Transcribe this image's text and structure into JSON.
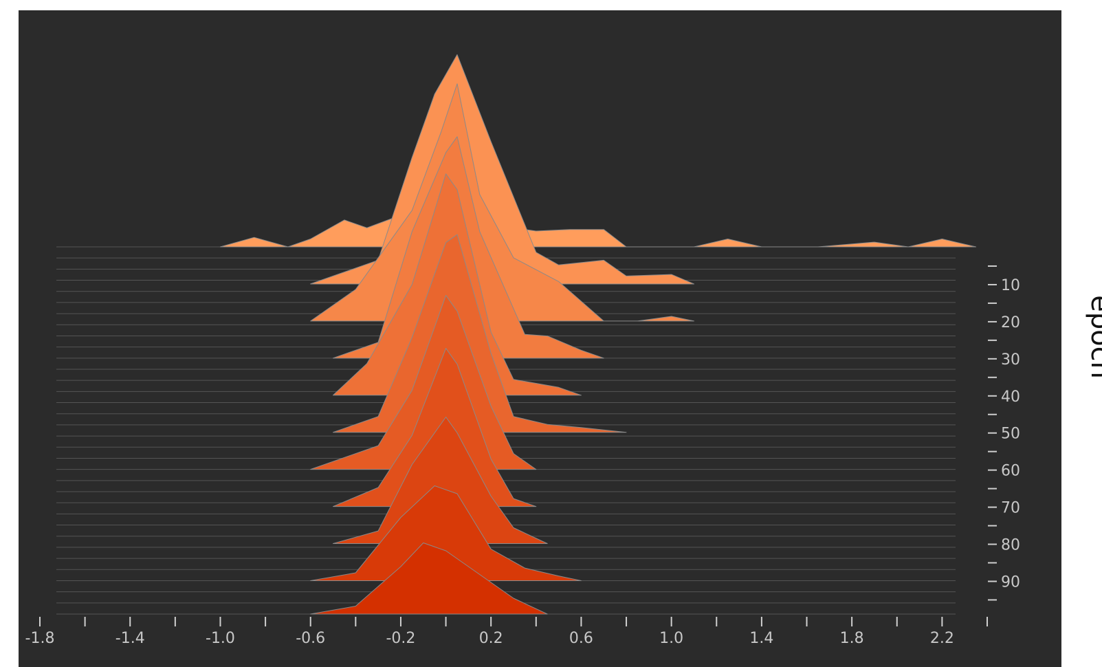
{
  "chart_data": {
    "type": "area",
    "title": "",
    "xlabel": "",
    "ylabel": "epoch",
    "xlim": [
      -1.8,
      2.4
    ],
    "epochs": [
      0,
      99
    ],
    "x_ticks": [
      -1.8,
      -1.4,
      -1.0,
      -0.6,
      -0.2,
      0.2,
      0.6,
      1.0,
      1.4,
      1.8,
      2.2
    ],
    "x_tick_labels": [
      "-1.8",
      "-1.4",
      "-1.0",
      "-0.6",
      "-0.2",
      "0.2",
      "0.6",
      "1.0",
      "1.4",
      "1.8",
      "2.2"
    ],
    "y_ticks": [
      10,
      20,
      30,
      40,
      50,
      60,
      70,
      80,
      90
    ],
    "y_tick_labels": [
      "10",
      "20",
      "30",
      "40",
      "50",
      "60",
      "70",
      "80",
      "90"
    ],
    "background_color": "#2b2b2b",
    "color_first_epoch": "#ff9d5c",
    "color_last_epoch": "#d43000",
    "baseline_color": "#555555",
    "series": [
      {
        "epoch": 0,
        "x": [
          -1.0,
          -0.85,
          -0.7,
          -0.6,
          -0.45,
          -0.35,
          -0.2,
          -0.1,
          0.02,
          0.15,
          0.3,
          0.4,
          0.55,
          0.7,
          0.8,
          1.1,
          1.25,
          1.4,
          1.65,
          1.9,
          2.05,
          2.2,
          2.35
        ],
        "y": [
          0,
          0.06,
          0,
          0.05,
          0.17,
          0.12,
          0.2,
          0.38,
          0.42,
          0.35,
          0.12,
          0.1,
          0.11,
          0.11,
          0,
          0,
          0.05,
          0,
          0,
          0.03,
          0,
          0.05,
          0
        ]
      },
      {
        "epoch": 10,
        "x": [
          -0.6,
          -0.3,
          -0.15,
          -0.05,
          0.05,
          0.2,
          0.4,
          0.5,
          0.7,
          0.8,
          1.0,
          1.1
        ],
        "y": [
          0,
          0.15,
          0.8,
          1.2,
          1.45,
          0.9,
          0.2,
          0.12,
          0.15,
          0.05,
          0.06,
          0
        ]
      },
      {
        "epoch": 20,
        "x": [
          -0.6,
          -0.4,
          -0.15,
          -0.02,
          0.05,
          0.15,
          0.3,
          0.5,
          0.7,
          0.85,
          1.0,
          1.1
        ],
        "y": [
          0,
          0.2,
          0.7,
          1.2,
          1.5,
          0.8,
          0.4,
          0.25,
          0,
          0,
          0.03,
          0
        ]
      },
      {
        "epoch": 30,
        "x": [
          -0.5,
          -0.3,
          -0.15,
          0.0,
          0.05,
          0.15,
          0.35,
          0.45,
          0.6,
          0.7
        ],
        "y": [
          0,
          0.1,
          0.8,
          1.3,
          1.4,
          0.8,
          0.15,
          0.14,
          0.05,
          0
        ]
      },
      {
        "epoch": 40,
        "x": [
          -0.5,
          -0.35,
          -0.15,
          0.0,
          0.05,
          0.2,
          0.3,
          0.5,
          0.6
        ],
        "y": [
          0,
          0.2,
          0.7,
          1.4,
          1.3,
          0.4,
          0.1,
          0.05,
          0
        ]
      },
      {
        "epoch": 50,
        "x": [
          -0.5,
          -0.3,
          -0.15,
          0.0,
          0.05,
          0.2,
          0.3,
          0.45,
          0.6,
          0.8
        ],
        "y": [
          0,
          0.1,
          0.6,
          1.2,
          1.25,
          0.5,
          0.1,
          0.05,
          0.03,
          0
        ]
      },
      {
        "epoch": 60,
        "x": [
          -0.6,
          -0.3,
          -0.15,
          0.0,
          0.05,
          0.2,
          0.3,
          0.4
        ],
        "y": [
          0,
          0.15,
          0.5,
          1.1,
          1.0,
          0.4,
          0.1,
          0
        ]
      },
      {
        "epoch": 70,
        "x": [
          -0.5,
          -0.3,
          -0.15,
          0.0,
          0.05,
          0.2,
          0.3,
          0.4
        ],
        "y": [
          0,
          0.12,
          0.45,
          1.0,
          0.9,
          0.3,
          0.05,
          0
        ]
      },
      {
        "epoch": 80,
        "x": [
          -0.5,
          -0.3,
          -0.15,
          0.0,
          0.05,
          0.2,
          0.3,
          0.45
        ],
        "y": [
          0,
          0.08,
          0.5,
          0.8,
          0.7,
          0.3,
          0.1,
          0
        ]
      },
      {
        "epoch": 90,
        "x": [
          -0.6,
          -0.4,
          -0.2,
          -0.05,
          0.05,
          0.2,
          0.35,
          0.5,
          0.6
        ],
        "y": [
          0,
          0.05,
          0.4,
          0.6,
          0.55,
          0.2,
          0.08,
          0.03,
          0
        ]
      },
      {
        "epoch": 99,
        "x": [
          -0.6,
          -0.4,
          -0.2,
          -0.1,
          0.0,
          0.15,
          0.3,
          0.45
        ],
        "y": [
          0,
          0.05,
          0.3,
          0.45,
          0.4,
          0.25,
          0.1,
          0
        ]
      }
    ]
  }
}
